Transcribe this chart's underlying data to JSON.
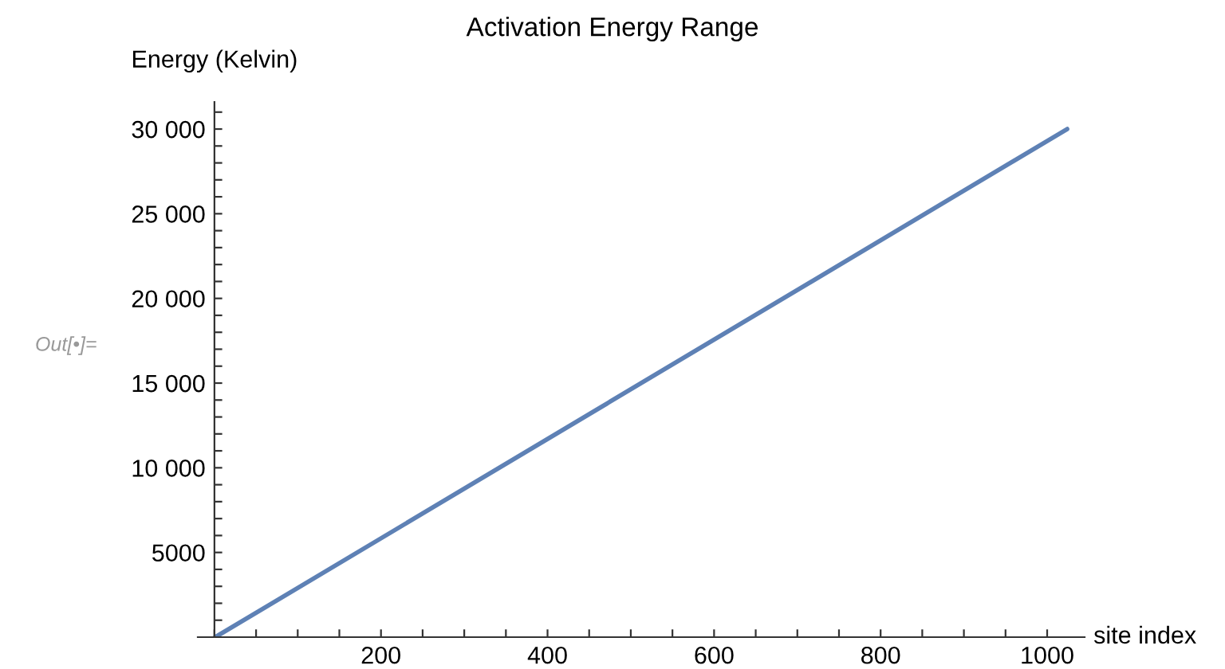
{
  "chart_data": {
    "type": "line",
    "title": "Activation Energy Range",
    "xlabel": "site index",
    "ylabel": "Energy (Kelvin)",
    "annotations": [
      "Out[•]="
    ],
    "x": [
      1,
      1024
    ],
    "series": [
      {
        "color": "#5e81b5",
        "values": [
          0,
          30000
        ]
      }
    ],
    "xlim": [
      -20,
      1045
    ],
    "ylim": [
      0,
      31600
    ],
    "xticks": [
      {
        "value": 0,
        "label": null
      },
      {
        "value": 50,
        "label": null
      },
      {
        "value": 100,
        "label": null
      },
      {
        "value": 150,
        "label": null
      },
      200,
      {
        "value": 250,
        "label": null
      },
      {
        "value": 300,
        "label": null
      },
      {
        "value": 350,
        "label": null
      },
      400,
      {
        "value": 450,
        "label": null
      },
      {
        "value": 500,
        "label": null
      },
      {
        "value": 550,
        "label": null
      },
      600,
      {
        "value": 650,
        "label": null
      },
      {
        "value": 700,
        "label": null
      },
      {
        "value": 750,
        "label": null
      },
      800,
      {
        "value": 850,
        "label": null
      },
      {
        "value": 900,
        "label": null
      },
      {
        "value": 950,
        "label": null
      },
      1000
    ],
    "yticks": [
      {
        "value": 1000,
        "label": null
      },
      {
        "value": 2000,
        "label": null
      },
      {
        "value": 3000,
        "label": null
      },
      {
        "value": 4000,
        "label": null
      },
      5000,
      {
        "value": 6000,
        "label": null
      },
      {
        "value": 7000,
        "label": null
      },
      {
        "value": 8000,
        "label": null
      },
      {
        "value": 9000,
        "label": null
      },
      {
        "value": 10000,
        "label": "10 000"
      },
      {
        "value": 11000,
        "label": null
      },
      {
        "value": 12000,
        "label": null
      },
      {
        "value": 13000,
        "label": null
      },
      {
        "value": 14000,
        "label": null
      },
      {
        "value": 15000,
        "label": "15 000"
      },
      {
        "value": 16000,
        "label": null
      },
      {
        "value": 17000,
        "label": null
      },
      {
        "value": 18000,
        "label": null
      },
      {
        "value": 19000,
        "label": null
      },
      {
        "value": 20000,
        "label": "20 000"
      },
      {
        "value": 21000,
        "label": null
      },
      {
        "value": 22000,
        "label": null
      },
      {
        "value": 23000,
        "label": null
      },
      {
        "value": 24000,
        "label": null
      },
      {
        "value": 25000,
        "label": "25 000"
      },
      {
        "value": 26000,
        "label": null
      },
      {
        "value": 27000,
        "label": null
      },
      {
        "value": 28000,
        "label": null
      },
      {
        "value": 29000,
        "label": null
      },
      {
        "value": 30000,
        "label": "30 000"
      },
      {
        "value": 31000,
        "label": null
      }
    ],
    "grid": false,
    "legend": false
  }
}
